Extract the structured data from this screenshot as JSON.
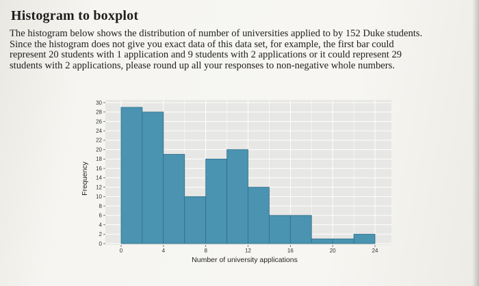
{
  "header": {
    "title": "Histogram to boxplot"
  },
  "instructions": {
    "lines": [
      "The histogram below shows the distribution of number of universities applied to by 152 Duke students.",
      "Since the histogram does not give you exact data of this data set, for example, the first bar could",
      "represent 20 students with 1 application and 9 students with 2 applications or it could represent 29",
      "students with 2 applications, please round up all your responses to non-negative whole numbers."
    ]
  },
  "chart_data": {
    "type": "bar",
    "xlabel": "Number of university applications",
    "ylabel": "Frequency",
    "x_ticks": [
      0,
      4,
      8,
      12,
      16,
      20,
      24
    ],
    "y_ticks": [
      0,
      2,
      4,
      6,
      8,
      10,
      12,
      14,
      16,
      18,
      20,
      22,
      24,
      26,
      28,
      30
    ],
    "xlim": [
      0,
      24
    ],
    "ylim": [
      0,
      30
    ],
    "bin_width": 2,
    "bins": [
      {
        "start": 0,
        "end": 2,
        "value": 29
      },
      {
        "start": 2,
        "end": 4,
        "value": 28
      },
      {
        "start": 4,
        "end": 6,
        "value": 19
      },
      {
        "start": 6,
        "end": 8,
        "value": 10
      },
      {
        "start": 8,
        "end": 10,
        "value": 18
      },
      {
        "start": 10,
        "end": 12,
        "value": 20
      },
      {
        "start": 12,
        "end": 14,
        "value": 12
      },
      {
        "start": 14,
        "end": 16,
        "value": 6
      },
      {
        "start": 16,
        "end": 18,
        "value": 6
      },
      {
        "start": 18,
        "end": 20,
        "value": 1
      },
      {
        "start": 20,
        "end": 22,
        "value": 1
      },
      {
        "start": 22,
        "end": 24,
        "value": 2
      }
    ],
    "grid": true,
    "colors": {
      "bar": "#4a93b1",
      "bar_edge": "#2f6e88",
      "panel": "#e7e7e5",
      "grid": "#ffffff"
    }
  }
}
